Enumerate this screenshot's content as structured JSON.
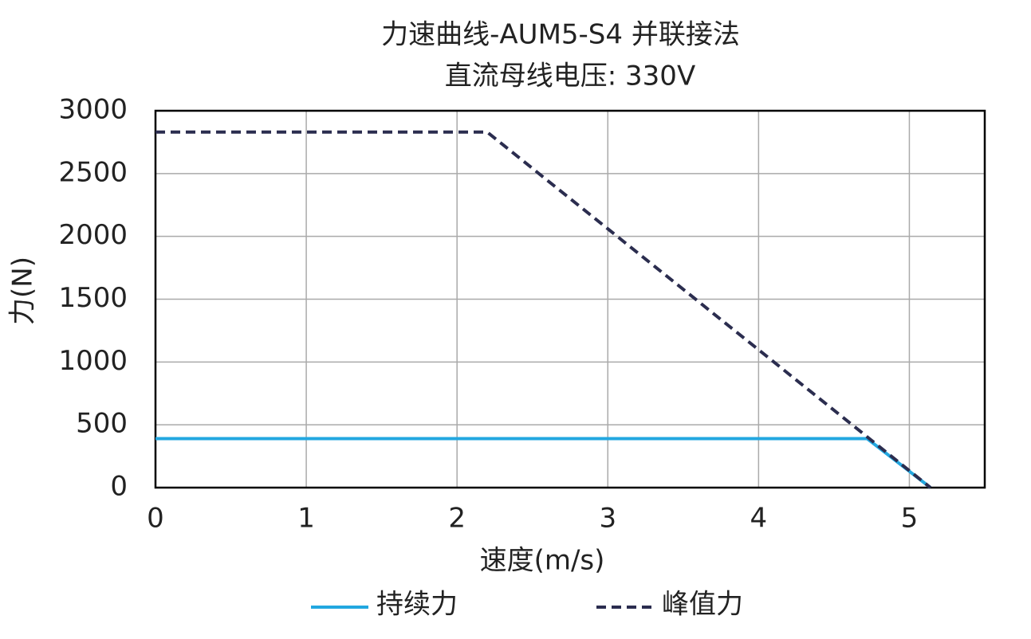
{
  "chart_data": {
    "type": "line",
    "title": "力速曲线-AUM5-S4 并联接法",
    "subtitle": "直流母线电压: 330V",
    "x_label": "速度(m/s)",
    "y_label": "力(N)",
    "series": [
      {
        "name": "持续力",
        "color": "#22a7e0",
        "dash": false,
        "x": [
          0,
          4.72,
          5.14
        ],
        "values": [
          390,
          390,
          0
        ]
      },
      {
        "name": "峰值力",
        "color": "#2b2d4f",
        "dash": true,
        "x": [
          0,
          2.2,
          5.14
        ],
        "values": [
          2830,
          2830,
          0
        ]
      }
    ],
    "xlim": [
      0,
      5.5
    ],
    "xticks": [
      0,
      1,
      2,
      3,
      4,
      5
    ],
    "ylim": [
      0,
      3000
    ],
    "yticks": [
      0,
      500,
      1000,
      1500,
      2000,
      2500,
      3000
    ],
    "grid": true
  }
}
